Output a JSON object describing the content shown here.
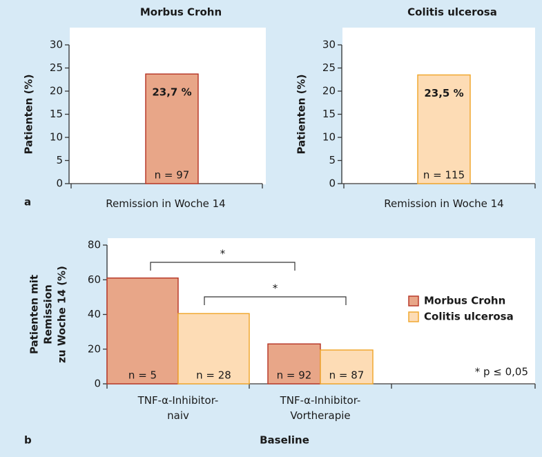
{
  "chart_data": [
    {
      "type": "bar",
      "panel": "a",
      "title": "Morbus Crohn",
      "y_label": "Patienten (%)",
      "categories": [
        "Remission in Woche 14"
      ],
      "series": [
        {
          "color": "#e8a688",
          "edge": "#b83a2a",
          "values": [
            23.7
          ],
          "value_labels": [
            "23,7 %"
          ],
          "n_labels": [
            "n = 97"
          ]
        }
      ],
      "ylim": [
        0,
        30
      ],
      "yticks": [
        0,
        5,
        10,
        15,
        20,
        25,
        30
      ]
    },
    {
      "type": "bar",
      "title": "Colitis ulcerosa",
      "y_label": "Patienten (%)",
      "categories": [
        "Remission in Woche 14"
      ],
      "series": [
        {
          "color": "#fddcb5",
          "edge": "#f0a830",
          "values": [
            23.5
          ],
          "value_labels": [
            "23,5 %"
          ],
          "n_labels": [
            "n = 115"
          ]
        }
      ],
      "ylim": [
        0,
        30
      ],
      "yticks": [
        0,
        5,
        10,
        15,
        20,
        25,
        30
      ]
    },
    {
      "type": "bar",
      "panel": "b",
      "x_label": "Baseline",
      "y_label": [
        "Patienten mit",
        "Remission",
        "zu Woche 14 (%)"
      ],
      "categories": [
        "TNF-α-Inhibitor-\nnaiv",
        "TNF-α-Inhibitor-\nVortherapie"
      ],
      "series": [
        {
          "name": "Morbus Crohn",
          "color": "#e8a688",
          "edge": "#b83a2a",
          "values": [
            61,
            23
          ],
          "n_labels": [
            "n = 5",
            "n = 92"
          ]
        },
        {
          "name": "Colitis ulcerosa",
          "color": "#fddcb5",
          "edge": "#f0a830",
          "values": [
            40.5,
            19.5
          ],
          "n_labels": [
            "n = 28",
            "n = 87"
          ]
        }
      ],
      "ylim": [
        0,
        80
      ],
      "yticks": [
        0,
        20,
        40,
        60,
        80
      ],
      "annotations": [
        "*",
        "*"
      ],
      "note": "* p ≤ 0,05",
      "legend": "right"
    }
  ]
}
